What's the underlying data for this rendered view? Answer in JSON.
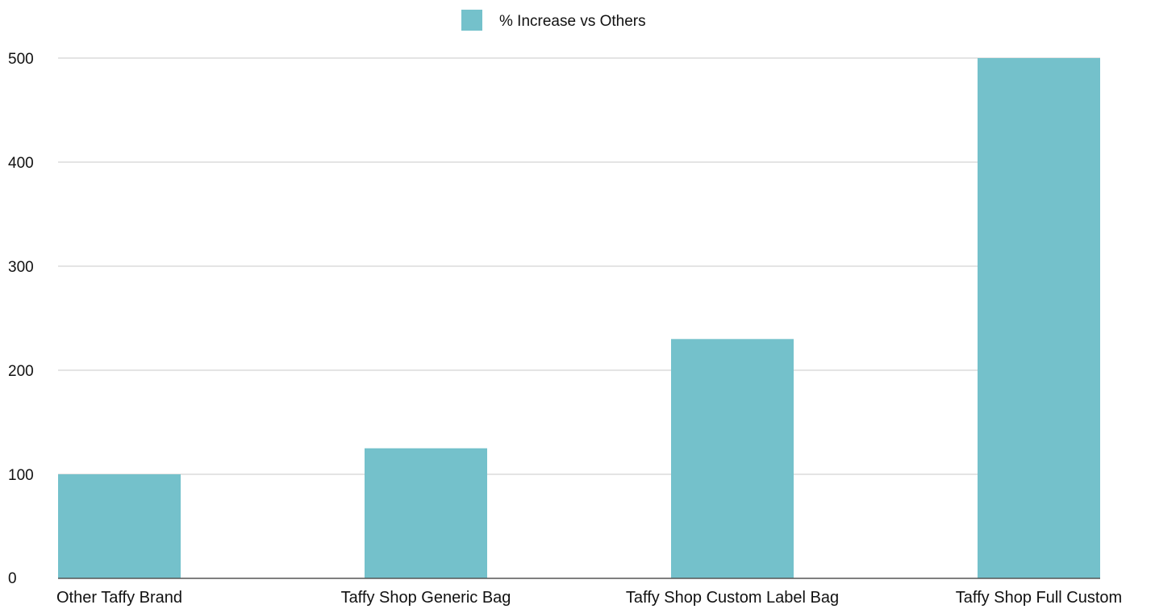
{
  "chart_data": {
    "type": "bar",
    "categories": [
      "Other Taffy Brand",
      "Taffy Shop Generic Bag",
      "Taffy Shop Custom Label Bag",
      "Taffy Shop Full Custom"
    ],
    "series": [
      {
        "name": "% Increase vs Others",
        "values": [
          100,
          125,
          230,
          500
        ],
        "color": "#74c1cb"
      }
    ],
    "ylim": [
      0,
      500
    ],
    "yticks": [
      0,
      100,
      200,
      300,
      400,
      500
    ],
    "grid": true,
    "legend": "top-center",
    "gridline_color": "#c8c8c8",
    "axis_color": "#555555"
  }
}
